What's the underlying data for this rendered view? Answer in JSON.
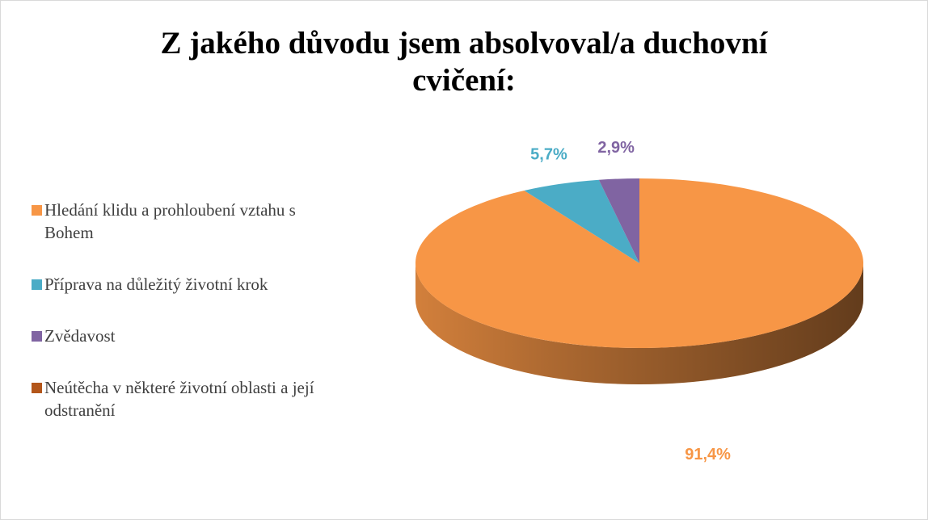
{
  "chart_data": {
    "type": "pie",
    "title": "Z jakého důvodu jsem absolvoval/a duchovní cvičení:",
    "categories": [
      "Hledání klidu a prohloubení vztahu s Bohem",
      "Příprava na důležitý životní krok",
      "Zvědavost",
      "Neútěcha v některé životní oblasti a její odstranění"
    ],
    "values": [
      91.4,
      5.7,
      2.9,
      0
    ],
    "value_labels": [
      "91,4%",
      "5,7%",
      "2,9%",
      null
    ],
    "colors": [
      "#f79646",
      "#4bacc6",
      "#8064a2",
      "#b3561a"
    ],
    "legend": "left"
  }
}
